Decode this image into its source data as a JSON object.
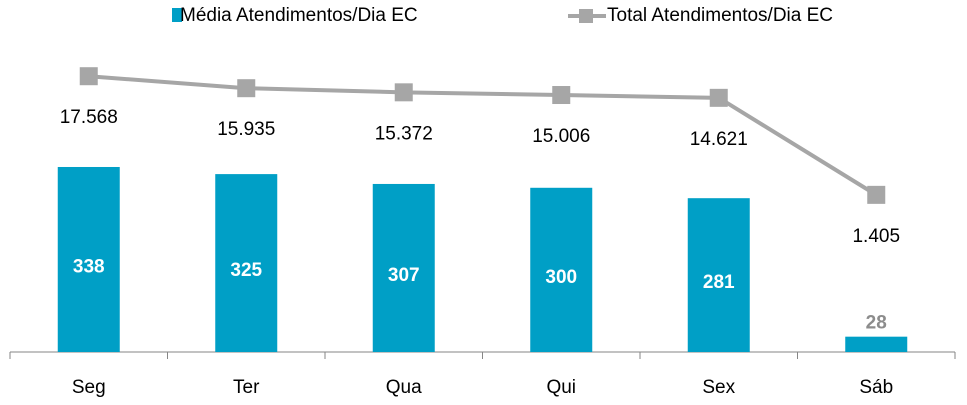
{
  "chart_data": {
    "type": "bar-line",
    "categories": [
      "Seg",
      "Ter",
      "Qua",
      "Qui",
      "Sex",
      "Sáb"
    ],
    "series": [
      {
        "name": "Média Atendimentos/Dia EC",
        "type": "bar",
        "color": "#009fc6",
        "values": [
          338,
          325,
          307,
          300,
          281,
          28
        ]
      },
      {
        "name": "Total Atendimentos/Dia EC",
        "type": "line",
        "axis": "y2",
        "color": "#a6a6a6",
        "values": [
          17568,
          15935,
          15372,
          15006,
          14621,
          1405
        ],
        "value_labels": [
          "17.568",
          "15.935",
          "15.372",
          "15.006",
          "14.621",
          "1.405"
        ]
      }
    ],
    "ylim": [
      0,
      570
    ],
    "y2lim": [
      -20000,
      22500
    ],
    "legend": "top"
  }
}
